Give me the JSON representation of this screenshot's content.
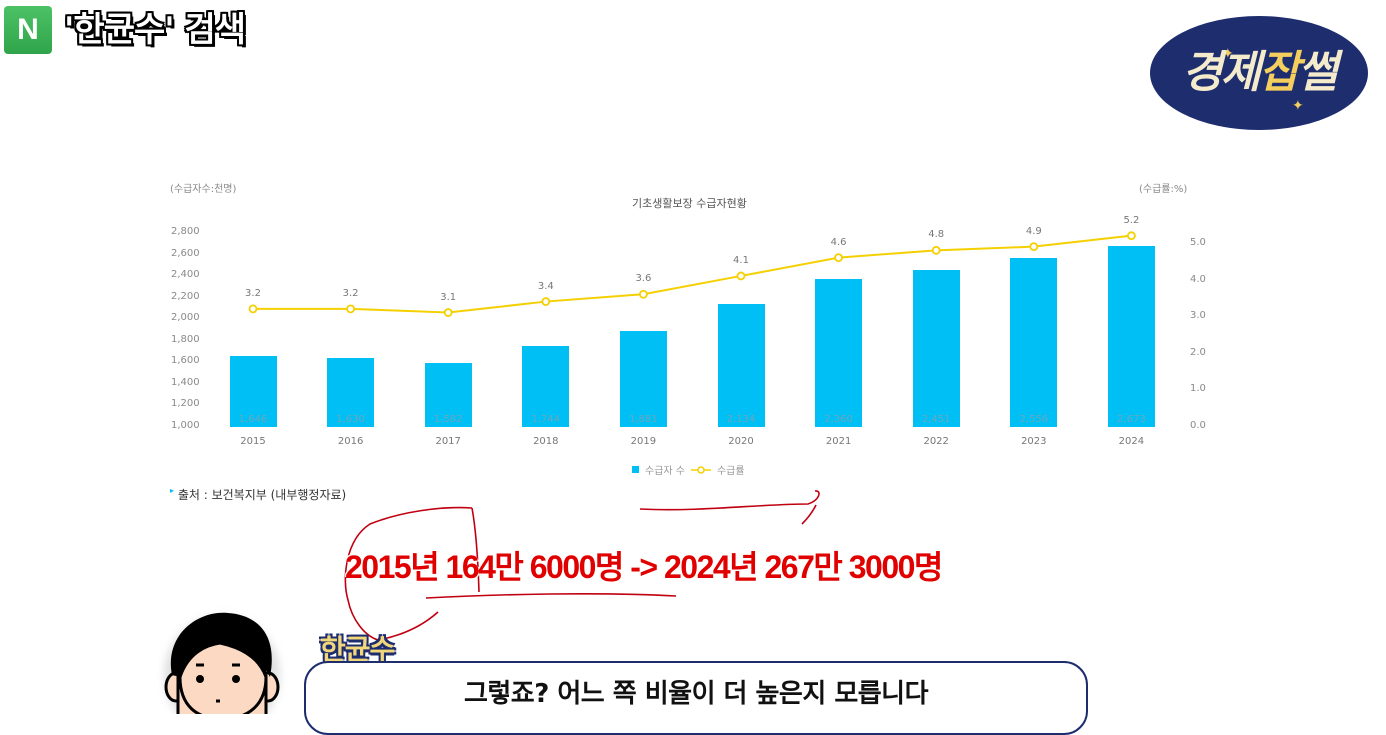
{
  "header": {
    "badge_letter": "N",
    "search_text": "'한균수' 검색"
  },
  "logo": {
    "part1": "경제",
    "part2": "잡",
    "part3": "썰",
    "sparkle": "✦"
  },
  "chart_data": {
    "type": "bar+line",
    "title": "기초생활보장 수급자현황",
    "left_axis_unit": "(수급자수:천명)",
    "right_axis_unit": "(수급률:%)",
    "categories": [
      "2015",
      "2016",
      "2017",
      "2018",
      "2019",
      "2020",
      "2021",
      "2022",
      "2023",
      "2024"
    ],
    "series": [
      {
        "name": "수급자 수",
        "type": "bar",
        "axis": "left",
        "color": "#00bff5",
        "values": [
          1646,
          1630,
          1582,
          1744,
          1881,
          2134,
          2360,
          2451,
          2556,
          2673
        ],
        "labels": [
          "1,646",
          "1,630",
          "1,582",
          "1,744",
          "1,881",
          "2,134",
          "2,360",
          "2,451",
          "2,556",
          "2,673"
        ]
      },
      {
        "name": "수급률",
        "type": "line",
        "axis": "right",
        "color": "#f5d000",
        "values": [
          3.2,
          3.2,
          3.1,
          3.4,
          3.6,
          4.1,
          4.6,
          4.8,
          4.9,
          5.2
        ],
        "labels": [
          "3.2",
          "3.2",
          "3.1",
          "3.4",
          "3.6",
          "4.1",
          "4.6",
          "4.8",
          "4.9",
          "5.2"
        ]
      }
    ],
    "left_ticks": [
      "2,800",
      "2,600",
      "2,400",
      "2,200",
      "2,000",
      "1,800",
      "1,600",
      "1,400",
      "1,200",
      "1,000"
    ],
    "right_ticks": [
      "5.0",
      "4.0",
      "3.0",
      "2.0",
      "1.0",
      "0.0"
    ],
    "ylim_left": [
      1000,
      2800
    ],
    "ylim_right": [
      0,
      5
    ],
    "legend": [
      "수급자 수",
      "수급률"
    ],
    "legend_position": "bottom",
    "grid": false,
    "source": "출처 : 보건복지부 (내부행정자료)"
  },
  "caption": "2015년 164만 6000명 -> 2024년 267만 3000명",
  "dialogue": {
    "speaker": "한균수",
    "text": "그렇죠? 어느 쪽 비율이 더 높은지 모릅니다"
  }
}
